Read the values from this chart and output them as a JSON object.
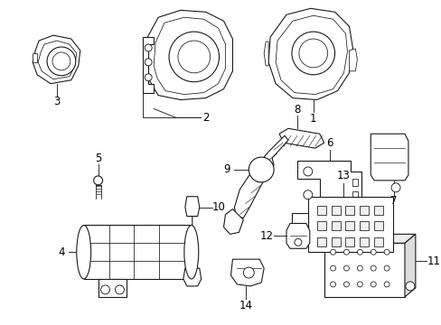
{
  "background_color": "#ffffff",
  "line_color": "#1a1a1a",
  "label_color": "#000000",
  "figsize": [
    4.89,
    3.6
  ],
  "dpi": 100
}
